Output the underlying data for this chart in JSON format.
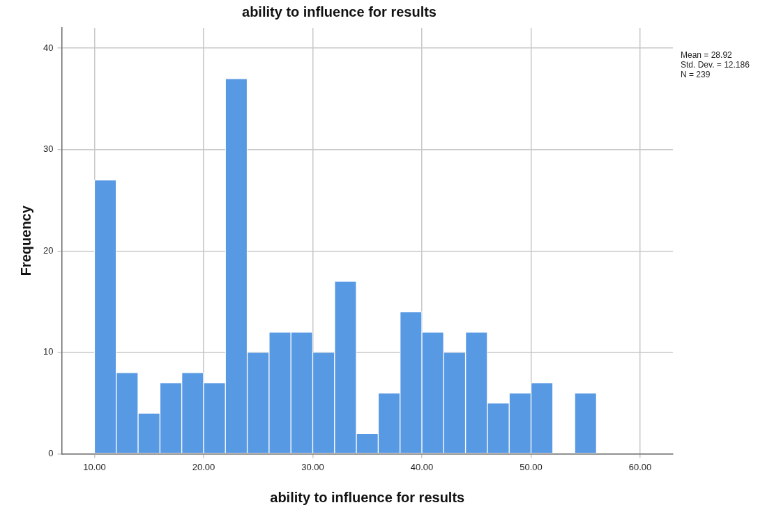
{
  "chart_data": {
    "type": "histogram",
    "title": "ability to influence for results",
    "xlabel": "ability to influence for results",
    "ylabel": "Frequency",
    "bins": [
      10,
      12,
      14,
      16,
      18,
      20,
      22,
      24,
      26,
      28,
      30,
      32,
      34,
      36,
      38,
      40,
      42,
      44,
      46,
      48,
      50,
      52,
      54,
      56,
      58,
      60
    ],
    "values": [
      27,
      8,
      4,
      7,
      8,
      7,
      37,
      10,
      12,
      12,
      10,
      17,
      2,
      6,
      14,
      12,
      10,
      12,
      5,
      6,
      7,
      0,
      6,
      0,
      0
    ],
    "color": "#5899e3",
    "xlim": [
      7,
      63
    ],
    "xticks": [
      {
        "value": 10,
        "label": "10.00"
      },
      {
        "value": 20,
        "label": "20.00"
      },
      {
        "value": 30,
        "label": "30.00"
      },
      {
        "value": 40,
        "label": "40.00"
      },
      {
        "value": 50,
        "label": "50.00"
      },
      {
        "value": 60,
        "label": "60.00"
      }
    ],
    "ylim": [
      0,
      42
    ],
    "yticks": [
      0,
      10,
      20,
      30,
      40
    ],
    "grid": true,
    "legend": false,
    "annotations": [
      "Mean = 28.92",
      "Std. Dev. = 12.186",
      "N = 239"
    ]
  }
}
